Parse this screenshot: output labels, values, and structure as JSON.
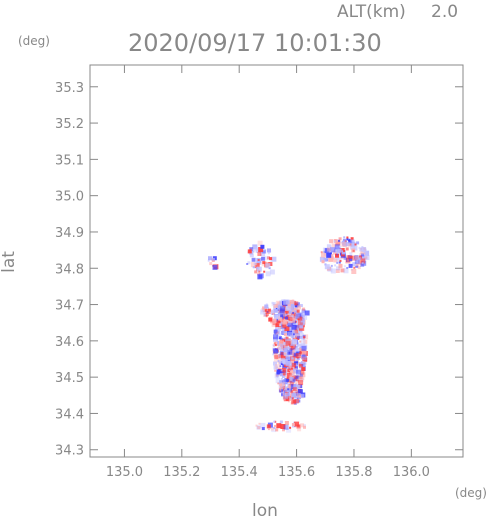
{
  "header": {
    "altitude_label": "ALT(km)",
    "altitude_value": "2.0",
    "datetime": "2020/09/17 10:01:30"
  },
  "axes": {
    "y_unit": "(deg)",
    "x_unit": "(deg)",
    "y_label": "lat",
    "x_label": "lon",
    "x_ticks": [
      "135.0",
      "135.2",
      "135.4",
      "135.6",
      "135.8",
      "136.0"
    ],
    "y_ticks": [
      "34.3",
      "34.4",
      "34.5",
      "34.6",
      "34.7",
      "34.8",
      "34.9",
      "35.0",
      "35.1",
      "35.2",
      "35.3"
    ]
  },
  "map": {
    "lon_range": [
      134.88,
      136.18
    ],
    "lat_range": [
      34.28,
      35.36
    ],
    "positive_color": "#ff3b3b",
    "negative_color": "#3b3bff",
    "neutral_color": "#c8c8ff",
    "echo_regions": [
      {
        "lon": 135.57,
        "lat": 34.58,
        "rlon": 0.055,
        "rlat": 0.14,
        "n": 520
      },
      {
        "lon": 135.55,
        "lat": 34.68,
        "rlon": 0.08,
        "rlat": 0.035,
        "n": 160
      },
      {
        "lon": 135.76,
        "lat": 34.84,
        "rlon": 0.08,
        "rlat": 0.05,
        "n": 150
      },
      {
        "lon": 135.47,
        "lat": 34.83,
        "rlon": 0.05,
        "rlat": 0.05,
        "n": 60
      },
      {
        "lon": 135.3,
        "lat": 34.82,
        "rlon": 0.02,
        "rlat": 0.015,
        "n": 10
      },
      {
        "lon": 135.54,
        "lat": 34.37,
        "rlon": 0.09,
        "rlat": 0.012,
        "n": 35
      },
      {
        "lon": 135.58,
        "lat": 34.46,
        "rlon": 0.035,
        "rlat": 0.03,
        "n": 60
      }
    ]
  }
}
